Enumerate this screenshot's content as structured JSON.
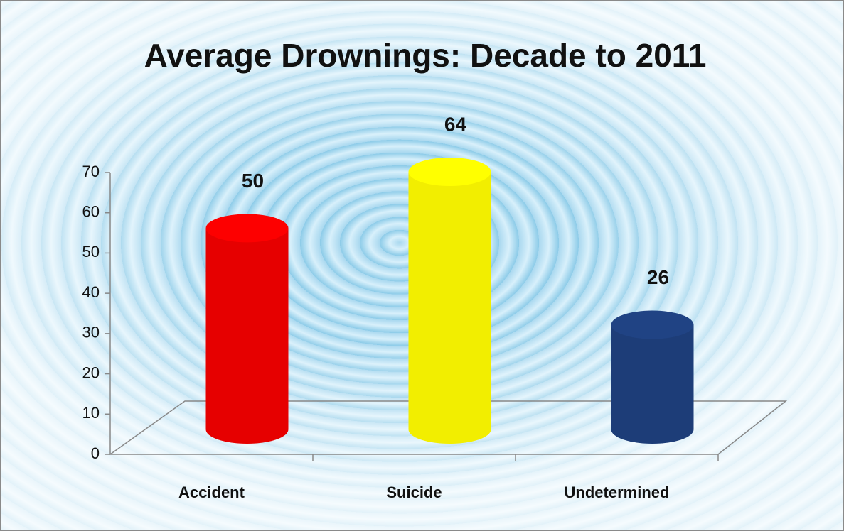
{
  "chart_data": {
    "type": "bar",
    "title": "Average Drownings: Decade to 2011",
    "categories": [
      "Accident",
      "Suicide",
      "Undetermined"
    ],
    "values": [
      50,
      64,
      26
    ],
    "colors": [
      "#e60000",
      "#f2ee00",
      "#1d3d78"
    ],
    "ylim": [
      0,
      70
    ],
    "yticks": [
      0,
      10,
      20,
      30,
      40,
      50,
      60,
      70
    ],
    "grid": false
  }
}
